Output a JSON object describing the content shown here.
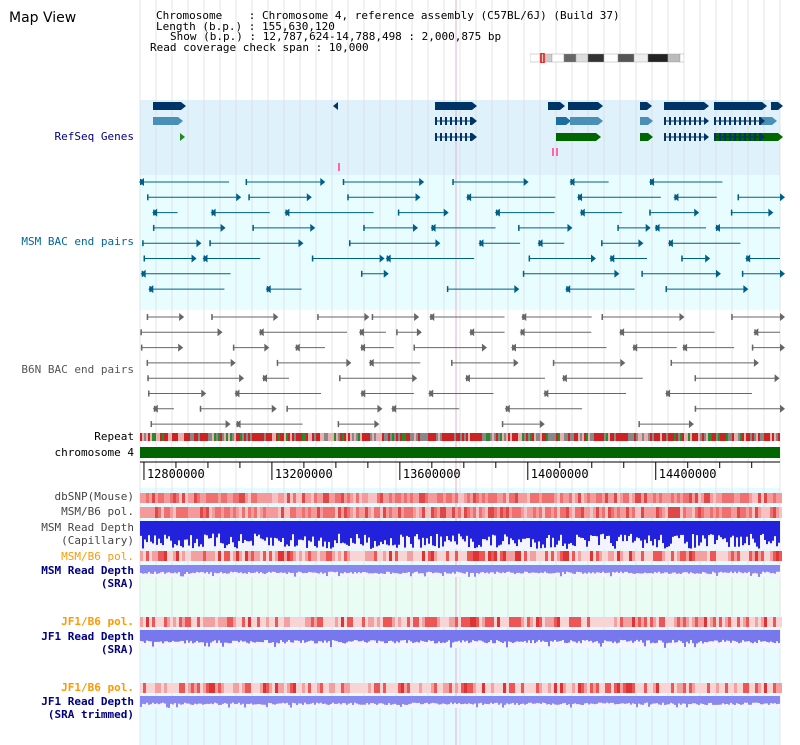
{
  "window": {
    "title": "Map View"
  },
  "info": {
    "chromosome_key": "Chromosome",
    "chromosome_value": "Chromosome 4, reference assembly (C57BL/6J) (Build 37)",
    "length_key": "Length (b.p.)",
    "length_value": "155,630,120",
    "show_key": "Show (b.p.)",
    "show_value": "12,787,624-14,788,498 : 2,000,875 bp",
    "coverage_key": "Read coverage check span",
    "coverage_value": "10,000"
  },
  "colors": {
    "refseq": "#003366",
    "msm": "#005f86",
    "b6n": "#666666",
    "band_light_blue": "#dff2fb",
    "band_cyan": "#e8fdff",
    "band_green": "#e9fdf4",
    "chromosome_bar": "#006600",
    "label_navy": "#000080",
    "label_orange": "#ff9900",
    "label_teal": "#006699"
  },
  "tracks": {
    "refseq": "RefSeq Genes",
    "msm_bac": "MSM BAC end pairs",
    "b6n_bac": "B6N BAC end pairs",
    "repeat": "Repeat",
    "chromosome": "chromosome 4",
    "dbsnp": "dbSNP(Mouse)",
    "msm_b6_pol_1": "MSM/B6 pol.",
    "msm_depth_cap_1": "MSM Read Depth",
    "msm_depth_cap_2": "(Capillary)",
    "msm_b6_pol_2": "MSM/B6 pol.",
    "msm_depth_sra_1": "MSM Read Depth",
    "msm_depth_sra_2": "(SRA)",
    "jf1_b6_pol_1": "JF1/B6 pol.",
    "jf1_depth_sra_1": "JF1 Read Depth",
    "jf1_depth_sra_2": "(SRA)",
    "jf1_b6_pol_2": "JF1/B6 pol.",
    "jf1_depth_trim_1": "JF1 Read Depth",
    "jf1_depth_trim_2": "(SRA trimmed)"
  },
  "axis": {
    "ticks": [
      "12800000",
      "13200000",
      "13600000",
      "14000000",
      "14400000"
    ],
    "tick_values": [
      12800000,
      13200000,
      13600000,
      14000000,
      14400000
    ],
    "start": 12787624,
    "end": 14788498
  }
}
